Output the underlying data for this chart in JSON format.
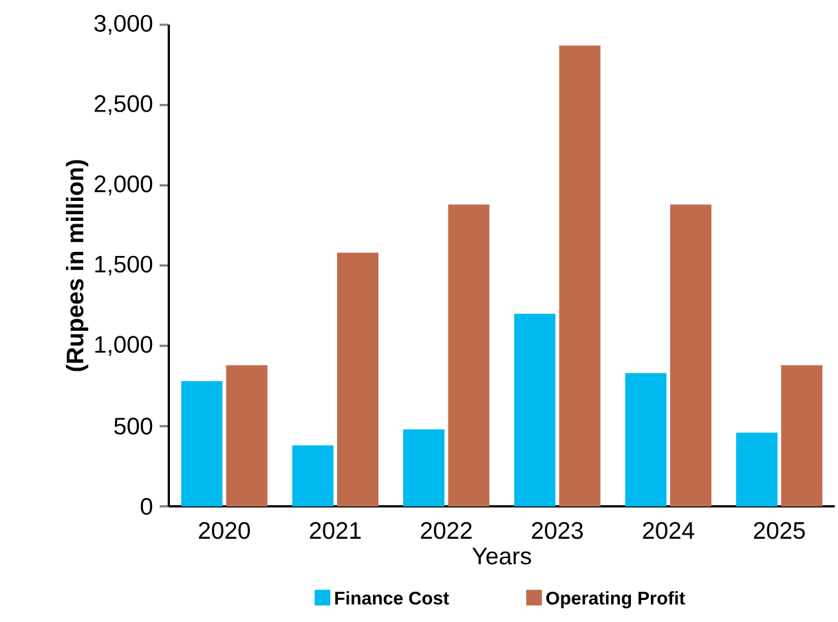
{
  "chart_data": {
    "type": "bar",
    "xlabel": "Years",
    "ylabel": "(Rupees in million)",
    "categories": [
      "2020",
      "2021",
      "2022",
      "2023",
      "2024",
      "2025"
    ],
    "series": [
      {
        "name": "Finance Cost",
        "color": "#00b9ef",
        "values": [
          780,
          380,
          480,
          1200,
          830,
          460
        ]
      },
      {
        "name": "Operating Profit",
        "color": "#c06c4c",
        "values": [
          880,
          1580,
          1880,
          2870,
          1880,
          880
        ]
      }
    ],
    "ylim": [
      0,
      3000
    ],
    "yticks": [
      {
        "value": 0,
        "label": "0"
      },
      {
        "value": 500,
        "label": "500"
      },
      {
        "value": 1000,
        "label": "1,000"
      },
      {
        "value": 1500,
        "label": "1,500"
      },
      {
        "value": 2000,
        "label": "2,000"
      },
      {
        "value": 2500,
        "label": "2,500"
      },
      {
        "value": 3000,
        "label": "3,000"
      }
    ],
    "grid": false,
    "legend": "bottom"
  }
}
